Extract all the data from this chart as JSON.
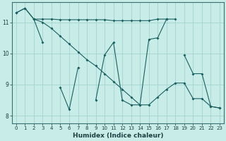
{
  "xlabel": "Humidex (Indice chaleur)",
  "bg_color": "#c8ece8",
  "grid_color": "#9ecfcb",
  "line_color": "#1a6060",
  "figsize": [
    3.2,
    2.0
  ],
  "dpi": 100,
  "ylim": [
    7.75,
    11.65
  ],
  "xlim": [
    -0.5,
    23.5
  ],
  "yticks": [
    8,
    9,
    10,
    11
  ],
  "xticks": [
    0,
    1,
    2,
    3,
    4,
    5,
    6,
    7,
    8,
    9,
    10,
    11,
    12,
    13,
    14,
    15,
    16,
    17,
    18,
    19,
    20,
    21,
    22,
    23
  ],
  "line1_x": [
    0,
    1,
    2,
    3,
    4,
    5,
    6,
    7,
    8,
    9,
    10,
    11,
    12,
    13,
    14,
    15,
    16,
    17,
    18
  ],
  "line1_y": [
    11.3,
    11.45,
    11.1,
    11.1,
    11.1,
    11.08,
    11.08,
    11.08,
    11.08,
    11.08,
    11.08,
    11.05,
    11.05,
    11.05,
    11.05,
    11.05,
    11.1,
    11.1,
    11.1
  ],
  "line2_x": [
    0,
    1,
    2,
    3,
    5,
    6,
    7,
    9,
    10,
    11,
    12,
    13,
    14,
    15,
    16,
    17,
    19,
    20,
    21,
    22,
    23
  ],
  "line2_y": [
    11.3,
    11.45,
    11.1,
    10.35,
    8.9,
    8.2,
    9.55,
    8.5,
    9.95,
    10.35,
    8.5,
    8.35,
    8.35,
    10.45,
    10.5,
    11.1,
    9.95,
    9.35,
    9.35,
    8.3,
    8.25
  ],
  "line3_x": [
    2,
    3,
    4,
    5,
    6,
    7,
    8,
    9,
    10,
    11,
    12,
    13,
    14,
    15,
    16,
    17,
    18,
    19,
    20,
    21,
    22,
    23
  ],
  "line3_y": [
    11.1,
    11.0,
    10.8,
    10.55,
    10.3,
    10.05,
    9.8,
    9.6,
    9.35,
    9.1,
    8.85,
    8.6,
    8.35,
    8.35,
    8.6,
    8.85,
    9.05,
    9.05,
    8.55,
    8.55,
    8.3,
    8.25
  ]
}
